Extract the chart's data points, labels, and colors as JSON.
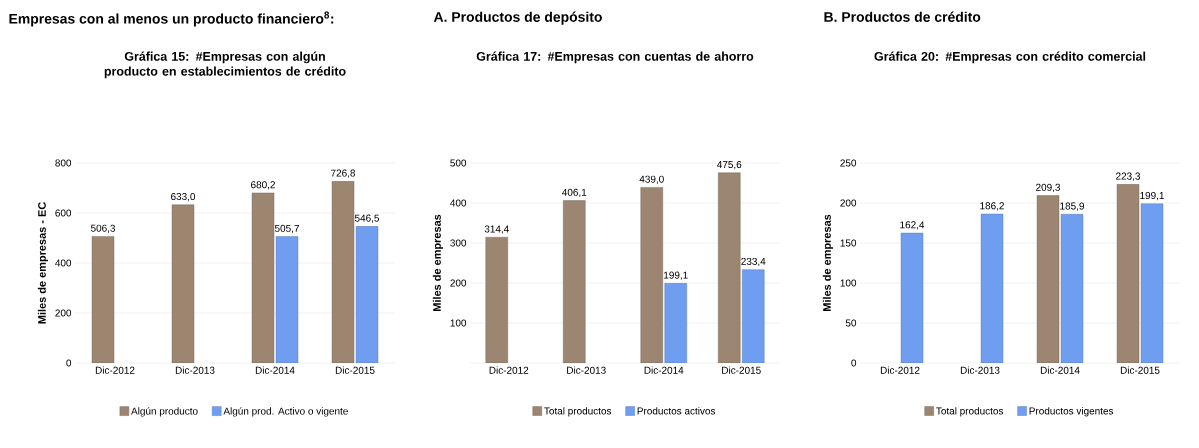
{
  "chart_data": [
    {
      "type": "bar",
      "title": "Empresas con al menos un producto financiero$^{8}$:",
      "subtitle": "Gráfica 15: #Empresas con algún producto en establecimientos de crédito",
      "ylabel": "Miles de empresas - EC",
      "categories": [
        "Dic-2012",
        "Dic-2013",
        "Dic-2014",
        "Dic-2015"
      ],
      "series": [
        {
          "name": "Algún producto",
          "color": "#9c8672",
          "values": [
            506.3,
            633.0,
            680.2,
            726.8
          ],
          "value_labels": [
            "506,3",
            "633,0",
            "680,2",
            "726,8"
          ]
        },
        {
          "name": "Algún prod. Activo o vigente",
          "color": "#6f9ef0",
          "values": [
            null,
            null,
            505.7,
            546.5
          ],
          "value_labels": [
            null,
            null,
            "505,7",
            "546,5"
          ]
        }
      ],
      "ylim": [
        0,
        800
      ],
      "yticks": [
        0,
        200,
        400,
        600,
        800
      ],
      "grid": "y",
      "legend": "bottom"
    },
    {
      "type": "bar",
      "title": "A.  Productos de depósito",
      "subtitle": "Gráfica 17: #Empresas con cuentas de ahorro",
      "ylabel": "Miles de empresas",
      "categories": [
        "Dic-2012",
        "Dic-2013",
        "Dic-2014",
        "Dic-2015"
      ],
      "series": [
        {
          "name": "Total productos",
          "color": "#9c8672",
          "values": [
            314.4,
            406.1,
            439.0,
            475.6
          ],
          "value_labels": [
            "314,4",
            "406,1",
            "439,0",
            "475,6"
          ]
        },
        {
          "name": "Productos activos",
          "color": "#6f9ef0",
          "values": [
            null,
            null,
            199.1,
            233.4
          ],
          "value_labels": [
            null,
            null,
            "199,1",
            "233,4"
          ]
        }
      ],
      "ylim": [
        0,
        500
      ],
      "yticks": [
        {
          "value": 0,
          "label": null
        },
        100,
        200,
        300,
        400,
        500
      ],
      "grid": "y",
      "legend": "bottom"
    },
    {
      "type": "bar",
      "title": "B.  Productos de crédito",
      "subtitle": "Gráfica 20: #Empresas con crédito comercial",
      "ylabel": "Miles de empresas",
      "categories": [
        "Dic-2012",
        "Dic-2013",
        "Dic-2014",
        "Dic-2015"
      ],
      "series": [
        {
          "name": "Total productos",
          "color": "#9c8672",
          "values": [
            null,
            null,
            209.3,
            223.3
          ],
          "value_labels": [
            null,
            null,
            "209,3",
            "223,3"
          ]
        },
        {
          "name": "Productos vigentes",
          "color": "#6f9ef0",
          "values": [
            162.4,
            186.2,
            185.9,
            199.1
          ],
          "value_labels": [
            "162,4",
            "186,2",
            "185,9",
            "199,1"
          ]
        }
      ],
      "ylim": [
        0,
        250
      ],
      "yticks": [
        0,
        50,
        100,
        150,
        200,
        250
      ],
      "grid": "y",
      "legend": "bottom"
    }
  ]
}
